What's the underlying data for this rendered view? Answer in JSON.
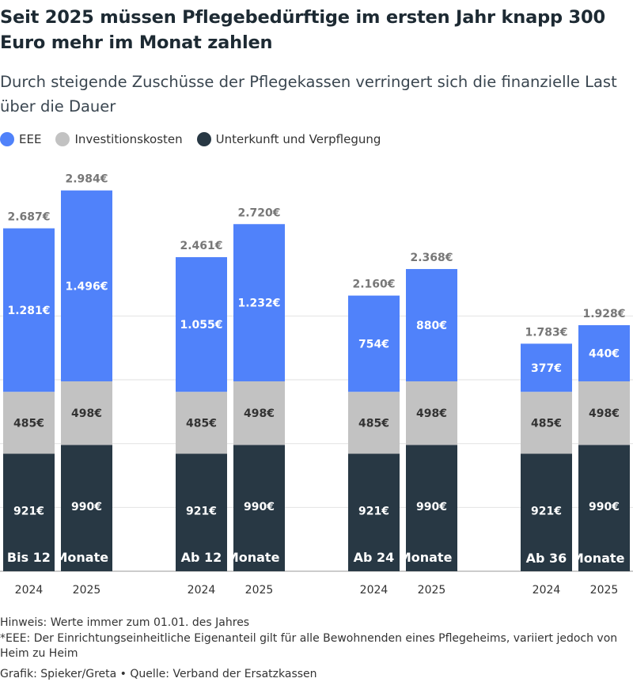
{
  "title": "Seit 2025 müssen Pflegebedürftige im ersten Jahr knapp 300 Euro mehr im Monat zahlen",
  "subtitle": "Durch steigende Zuschüsse der Pflegekassen verringert sich die finanzielle Last über die Dauer",
  "colors": {
    "eee": "#5082fa",
    "invest": "#c2c2c2",
    "unterkunft": "#283844",
    "grid": "#e2e2e2"
  },
  "legend": [
    {
      "label": "EEE",
      "color": "#5082fa"
    },
    {
      "label": "Investitionskosten",
      "color": "#c2c2c2"
    },
    {
      "label": "Unterkunft und Verpflegung",
      "color": "#283844"
    }
  ],
  "chart_data": {
    "type": "bar",
    "stacked": true,
    "ylim": [
      0,
      3000
    ],
    "groups": [
      {
        "label": "Bis 12 Monate",
        "bars": [
          {
            "year": "2024",
            "unterkunft": 921,
            "invest": 485,
            "eee": 1281,
            "total": 2687,
            "unterkunft_label": "921€",
            "invest_label": "485€",
            "eee_label": "1.281€",
            "total_label": "2.687€"
          },
          {
            "year": "2025",
            "unterkunft": 990,
            "invest": 498,
            "eee": 1496,
            "total": 2984,
            "unterkunft_label": "990€",
            "invest_label": "498€",
            "eee_label": "1.496€",
            "total_label": "2.984€"
          }
        ]
      },
      {
        "label": "Ab 12 Monate",
        "bars": [
          {
            "year": "2024",
            "unterkunft": 921,
            "invest": 485,
            "eee": 1055,
            "total": 2461,
            "unterkunft_label": "921€",
            "invest_label": "485€",
            "eee_label": "1.055€",
            "total_label": "2.461€"
          },
          {
            "year": "2025",
            "unterkunft": 990,
            "invest": 498,
            "eee": 1232,
            "total": 2720,
            "unterkunft_label": "990€",
            "invest_label": "498€",
            "eee_label": "1.232€",
            "total_label": "2.720€"
          }
        ]
      },
      {
        "label": "Ab 24 Monate",
        "bars": [
          {
            "year": "2024",
            "unterkunft": 921,
            "invest": 485,
            "eee": 754,
            "total": 2160,
            "unterkunft_label": "921€",
            "invest_label": "485€",
            "eee_label": "754€",
            "total_label": "2.160€"
          },
          {
            "year": "2025",
            "unterkunft": 990,
            "invest": 498,
            "eee": 880,
            "total": 2368,
            "unterkunft_label": "990€",
            "invest_label": "498€",
            "eee_label": "880€",
            "total_label": "2.368€"
          }
        ]
      },
      {
        "label": "Ab 36 Monate",
        "bars": [
          {
            "year": "2024",
            "unterkunft": 921,
            "invest": 485,
            "eee": 377,
            "total": 1783,
            "unterkunft_label": "921€",
            "invest_label": "485€",
            "eee_label": "377€",
            "total_label": "1.783€"
          },
          {
            "year": "2025",
            "unterkunft": 990,
            "invest": 498,
            "eee": 440,
            "total": 1928,
            "unterkunft_label": "990€",
            "invest_label": "498€",
            "eee_label": "440€",
            "total_label": "1.928€"
          }
        ]
      }
    ]
  },
  "footer": {
    "hinweis": "Hinweis: Werte immer zum 01.01. des Jahres",
    "eee_note": "*EEE: Der Einrichtungseinheitliche Eigenanteil gilt für alle Bewohnenden eines Pflegeheims, variiert jedoch von Heim zu Heim",
    "credit": "Grafik: Spieker/Greta • Quelle: Verband der Ersatzkassen"
  }
}
